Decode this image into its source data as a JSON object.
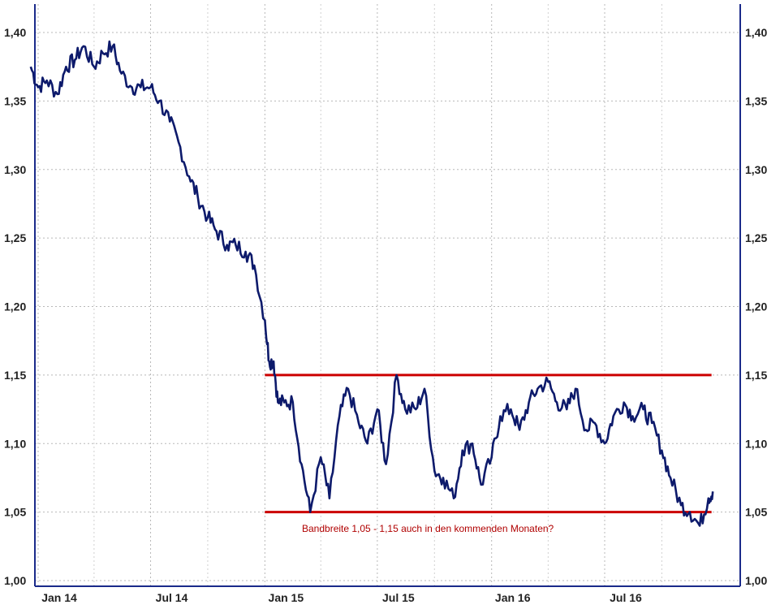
{
  "chart_data": {
    "type": "line",
    "title": "",
    "xlabel": "",
    "ylabel": "",
    "ylim": [
      1.0,
      1.42
    ],
    "y_ticks": [
      1.0,
      1.05,
      1.1,
      1.15,
      1.2,
      1.25,
      1.3,
      1.35,
      1.4
    ],
    "y_tick_labels": [
      "1,00",
      "1,05",
      "1,10",
      "1,15",
      "1,20",
      "1,25",
      "1,30",
      "1,35",
      "1,40"
    ],
    "x_ticks": [
      {
        "date": "2014-01",
        "label": "Jan 14"
      },
      {
        "date": "2014-07",
        "label": "Jul 14"
      },
      {
        "date": "2015-01",
        "label": "Jan 15"
      },
      {
        "date": "2015-07",
        "label": "Jul 15"
      },
      {
        "date": "2016-01",
        "label": "Jan 16"
      },
      {
        "date": "2016-07",
        "label": "Jul 16"
      }
    ],
    "grid": true,
    "axis_color": "#1a2a8a",
    "line_color": "#0d1a6b",
    "band_color": "#cc0000",
    "series": [
      {
        "x": [
          "2013-12-20",
          "2014-01-01",
          "2014-01-15",
          "2014-02-01",
          "2014-02-15",
          "2014-03-01",
          "2014-03-15",
          "2014-04-01",
          "2014-04-15",
          "2014-05-01",
          "2014-05-15",
          "2014-06-01",
          "2014-06-15",
          "2014-07-01",
          "2014-07-15",
          "2014-08-01",
          "2014-08-15",
          "2014-09-01",
          "2014-09-15",
          "2014-10-01",
          "2014-10-15",
          "2014-11-01",
          "2014-11-15",
          "2014-12-01",
          "2014-12-15",
          "2015-01-01",
          "2015-01-08",
          "2015-01-15",
          "2015-01-22",
          "2015-02-01",
          "2015-02-15",
          "2015-03-01",
          "2015-03-15",
          "2015-04-01",
          "2015-04-15",
          "2015-05-01",
          "2015-05-15",
          "2015-06-01",
          "2015-06-15",
          "2015-07-01",
          "2015-07-15",
          "2015-08-01",
          "2015-08-15",
          "2015-09-01",
          "2015-09-15",
          "2015-10-01",
          "2015-10-15",
          "2015-11-01",
          "2015-11-15",
          "2015-12-01",
          "2015-12-15",
          "2016-01-01",
          "2016-01-15",
          "2016-02-01",
          "2016-02-15",
          "2016-03-01",
          "2016-03-15",
          "2016-04-01",
          "2016-04-15",
          "2016-05-01",
          "2016-05-15",
          "2016-06-01",
          "2016-06-15",
          "2016-07-01",
          "2016-07-15",
          "2016-08-01",
          "2016-08-15",
          "2016-09-01",
          "2016-09-15",
          "2016-10-01",
          "2016-10-15",
          "2016-11-01",
          "2016-11-15",
          "2016-12-01",
          "2016-12-15",
          "2016-12-22"
        ],
        "values": [
          1.375,
          1.36,
          1.365,
          1.355,
          1.375,
          1.38,
          1.39,
          1.375,
          1.385,
          1.39,
          1.37,
          1.36,
          1.36,
          1.36,
          1.35,
          1.335,
          1.32,
          1.295,
          1.28,
          1.265,
          1.255,
          1.245,
          1.245,
          1.24,
          1.23,
          1.19,
          1.16,
          1.16,
          1.13,
          1.13,
          1.13,
          1.085,
          1.05,
          1.09,
          1.06,
          1.12,
          1.14,
          1.115,
          1.1,
          1.125,
          1.085,
          1.15,
          1.125,
          1.125,
          1.14,
          1.08,
          1.075,
          1.06,
          1.095,
          1.1,
          1.07,
          1.09,
          1.12,
          1.125,
          1.11,
          1.13,
          1.14,
          1.145,
          1.13,
          1.125,
          1.14,
          1.11,
          1.115,
          1.1,
          1.12,
          1.13,
          1.12,
          1.125,
          1.115,
          1.095,
          1.075,
          1.055,
          1.05,
          1.04,
          1.06,
          1.065
        ]
      }
    ],
    "bands": [
      {
        "y": 1.15,
        "from": "2015-01-01",
        "to": "2016-12-20"
      },
      {
        "y": 1.05,
        "from": "2015-01-01",
        "to": "2016-12-20"
      }
    ],
    "annotations": [
      {
        "text": "Bandbreite 1,05 - 1,15 auch in den kommenden Monaten?",
        "x": "2015-01-15",
        "y": 1.035
      }
    ]
  }
}
